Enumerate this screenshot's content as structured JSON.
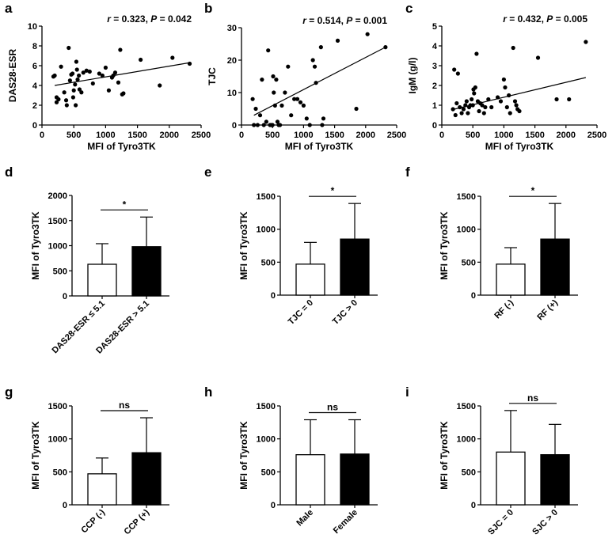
{
  "chart_data": [
    {
      "panel": "a",
      "type": "scatter",
      "xlabel": "MFI of Tyro3TK",
      "ylabel": "DAS28-ESR",
      "xlim": [
        0,
        2500
      ],
      "ylim": [
        0,
        10
      ],
      "xticks": [
        "0",
        "500",
        "1000",
        "1500",
        "2000",
        "2500"
      ],
      "yticks": [
        "0",
        "2",
        "4",
        "6",
        "8",
        "10"
      ],
      "annotation": {
        "r_label": "r",
        "r_value": " = 0.323, ",
        "p_label": "P",
        "p_value": " = 0.042"
      },
      "points": [
        [
          180,
          4.9
        ],
        [
          200,
          5.0
        ],
        [
          230,
          2.8
        ],
        [
          230,
          2.3
        ],
        [
          260,
          2.6
        ],
        [
          300,
          5.9
        ],
        [
          350,
          3.3
        ],
        [
          380,
          2.5
        ],
        [
          390,
          2.0
        ],
        [
          420,
          7.8
        ],
        [
          440,
          4.5
        ],
        [
          460,
          5.1
        ],
        [
          480,
          5.2
        ],
        [
          490,
          2.8
        ],
        [
          500,
          3.5
        ],
        [
          520,
          4.1
        ],
        [
          530,
          2.0
        ],
        [
          540,
          6.4
        ],
        [
          550,
          5.6
        ],
        [
          560,
          4.6
        ],
        [
          580,
          5.0
        ],
        [
          590,
          3.6
        ],
        [
          620,
          3.3
        ],
        [
          650,
          5.3
        ],
        [
          700,
          5.5
        ],
        [
          750,
          5.4
        ],
        [
          800,
          4.2
        ],
        [
          900,
          5.2
        ],
        [
          950,
          5.0
        ],
        [
          1000,
          5.8
        ],
        [
          1050,
          3.5
        ],
        [
          1100,
          4.8
        ],
        [
          1120,
          5.0
        ],
        [
          1150,
          5.3
        ],
        [
          1200,
          4.3
        ],
        [
          1230,
          7.6
        ],
        [
          1260,
          3.1
        ],
        [
          1280,
          3.2
        ],
        [
          1550,
          6.6
        ],
        [
          1850,
          4.0
        ],
        [
          2050,
          6.8
        ],
        [
          2320,
          6.2
        ]
      ],
      "fit": [
        [
          200,
          4.0
        ],
        [
          2320,
          6.3
        ]
      ]
    },
    {
      "panel": "b",
      "type": "scatter",
      "xlabel": "MFI of Tyro3TK",
      "ylabel": "TJC",
      "xlim": [
        0,
        2500
      ],
      "ylim": [
        0,
        30
      ],
      "xticks": [
        "0",
        "500",
        "1000",
        "1500",
        "2000",
        "2500"
      ],
      "yticks": [
        "0",
        "10",
        "20",
        "30"
      ],
      "annotation": {
        "r_label": "r",
        "r_value": " = 0.514, ",
        "p_label": "P",
        "p_value": " = 0.001"
      },
      "points": [
        [
          180,
          8
        ],
        [
          200,
          0
        ],
        [
          230,
          5
        ],
        [
          260,
          0
        ],
        [
          300,
          3
        ],
        [
          330,
          14
        ],
        [
          360,
          0
        ],
        [
          400,
          1
        ],
        [
          430,
          23
        ],
        [
          460,
          0
        ],
        [
          480,
          0
        ],
        [
          500,
          0
        ],
        [
          510,
          15
        ],
        [
          520,
          10
        ],
        [
          540,
          6
        ],
        [
          560,
          14
        ],
        [
          580,
          1
        ],
        [
          600,
          0
        ],
        [
          620,
          0
        ],
        [
          650,
          6
        ],
        [
          700,
          10
        ],
        [
          750,
          18
        ],
        [
          800,
          3
        ],
        [
          850,
          8
        ],
        [
          900,
          8
        ],
        [
          950,
          7
        ],
        [
          1000,
          6
        ],
        [
          1050,
          2
        ],
        [
          1100,
          0
        ],
        [
          1150,
          20
        ],
        [
          1180,
          18
        ],
        [
          1200,
          13
        ],
        [
          1280,
          24
        ],
        [
          1300,
          0
        ],
        [
          1320,
          2
        ],
        [
          1550,
          26
        ],
        [
          1850,
          5
        ],
        [
          2030,
          28
        ],
        [
          2320,
          24
        ]
      ],
      "fit": [
        [
          200,
          3
        ],
        [
          2320,
          24
        ]
      ]
    },
    {
      "panel": "c",
      "type": "scatter",
      "xlabel": "MFI of Tyro3TK",
      "ylabel": "IgM (g/l)",
      "xlim": [
        0,
        2500
      ],
      "ylim": [
        0,
        5
      ],
      "xticks": [
        "0",
        "500",
        "1000",
        "1500",
        "2000",
        "2500"
      ],
      "yticks": [
        "0",
        "1",
        "2",
        "3",
        "4",
        "5"
      ],
      "annotation": {
        "r_label": "r",
        "r_value": " = 0.432, ",
        "p_label": "P",
        "p_value": " = 0.005"
      },
      "points": [
        [
          180,
          0.8
        ],
        [
          200,
          2.8
        ],
        [
          220,
          0.5
        ],
        [
          240,
          1.1
        ],
        [
          260,
          2.6
        ],
        [
          290,
          0.9
        ],
        [
          320,
          0.6
        ],
        [
          350,
          0.8
        ],
        [
          380,
          1.0
        ],
        [
          400,
          1.2
        ],
        [
          420,
          0.6
        ],
        [
          440,
          0.9
        ],
        [
          460,
          1.0
        ],
        [
          480,
          1.3
        ],
        [
          500,
          1.0
        ],
        [
          510,
          1.8
        ],
        [
          520,
          1.6
        ],
        [
          540,
          1.9
        ],
        [
          560,
          3.6
        ],
        [
          580,
          1.2
        ],
        [
          600,
          0.7
        ],
        [
          620,
          1.1
        ],
        [
          650,
          1.0
        ],
        [
          680,
          0.6
        ],
        [
          700,
          0.9
        ],
        [
          750,
          1.3
        ],
        [
          800,
          0.9
        ],
        [
          900,
          1.4
        ],
        [
          950,
          1.2
        ],
        [
          1000,
          2.3
        ],
        [
          1020,
          1.9
        ],
        [
          1050,
          0.9
        ],
        [
          1080,
          1.5
        ],
        [
          1100,
          0.6
        ],
        [
          1150,
          3.9
        ],
        [
          1180,
          1.2
        ],
        [
          1200,
          1.0
        ],
        [
          1220,
          0.8
        ],
        [
          1250,
          0.7
        ],
        [
          1550,
          3.4
        ],
        [
          1850,
          1.3
        ],
        [
          2050,
          1.3
        ],
        [
          2320,
          4.2
        ]
      ],
      "fit": [
        [
          200,
          0.8
        ],
        [
          2320,
          2.4
        ]
      ]
    },
    {
      "panel": "d",
      "type": "bar",
      "ylabel": "MFI of Tyro3TK",
      "ylim": [
        0,
        2000
      ],
      "yticks": [
        "0",
        "500",
        "1000",
        "1500",
        "2000"
      ],
      "categories": [
        "DAS28-ESR ≤ 5.1",
        "DAS28-ESR > 5.1"
      ],
      "values": [
        630,
        980
      ],
      "errors": [
        410,
        590
      ],
      "fills": [
        "#ffffff",
        "#000000"
      ],
      "significance": "*"
    },
    {
      "panel": "e",
      "type": "bar",
      "ylabel": "MFI of Tyro3TK",
      "ylim": [
        0,
        1500
      ],
      "yticks": [
        "0",
        "500",
        "1000",
        "1500"
      ],
      "categories": [
        "TJC = 0",
        "TJC > 0"
      ],
      "values": [
        470,
        850
      ],
      "errors": [
        330,
        540
      ],
      "fills": [
        "#ffffff",
        "#000000"
      ],
      "significance": "*"
    },
    {
      "panel": "f",
      "type": "bar",
      "ylabel": "MFI of Tyro3TK",
      "ylim": [
        0,
        1500
      ],
      "yticks": [
        "0",
        "500",
        "1000",
        "1500"
      ],
      "categories": [
        "RF (-)",
        "RF (+)"
      ],
      "values": [
        470,
        850
      ],
      "errors": [
        250,
        540
      ],
      "fills": [
        "#ffffff",
        "#000000"
      ],
      "significance": "*"
    },
    {
      "panel": "g",
      "type": "bar",
      "ylabel": "MFI of Tyro3TK",
      "ylim": [
        0,
        1500
      ],
      "yticks": [
        "0",
        "500",
        "1000",
        "1500"
      ],
      "categories": [
        "CCP (-)",
        "CCP (+)"
      ],
      "values": [
        470,
        790
      ],
      "errors": [
        240,
        530
      ],
      "fills": [
        "#ffffff",
        "#000000"
      ],
      "significance": "ns"
    },
    {
      "panel": "h",
      "type": "bar",
      "ylabel": "MFI of Tyro3TK",
      "ylim": [
        0,
        1500
      ],
      "yticks": [
        "0",
        "500",
        "1000",
        "1500"
      ],
      "categories": [
        "Male",
        "Female"
      ],
      "values": [
        760,
        770
      ],
      "errors": [
        530,
        520
      ],
      "fills": [
        "#ffffff",
        "#000000"
      ],
      "significance": "ns"
    },
    {
      "panel": "i",
      "type": "bar",
      "ylabel": "MFI of Tyro3TK",
      "ylim": [
        0,
        1500
      ],
      "yticks": [
        "0",
        "500",
        "1000",
        "1500"
      ],
      "categories": [
        "SJC = 0",
        "SJC > 0"
      ],
      "values": [
        800,
        760
      ],
      "errors": [
        630,
        460
      ],
      "fills": [
        "#ffffff",
        "#000000"
      ],
      "significance": "ns"
    }
  ]
}
